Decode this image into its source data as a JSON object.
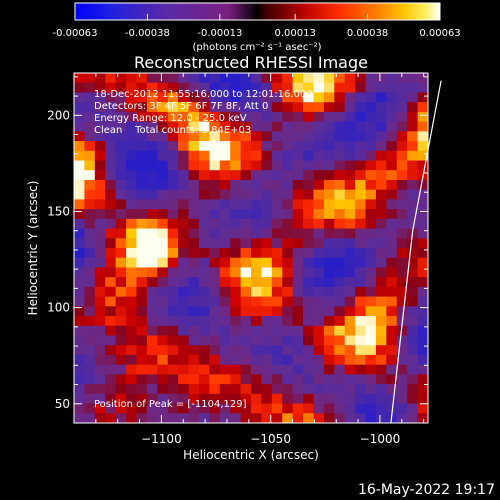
{
  "chart_data": {
    "type": "heatmap",
    "title": "Reconstructed RHESSI Image",
    "xlabel": "Heliocentric X (arcsec)",
    "ylabel": "Heliocentric Y (arcsec)",
    "xlim": [
      -1140,
      -978
    ],
    "ylim": [
      40,
      222
    ],
    "x_ticks": [
      -1100,
      -1050,
      -1000
    ],
    "y_ticks": [
      50,
      100,
      150,
      200
    ],
    "colorbar": {
      "colormap": "red-temperature (blue-purple-red-orange-yellow-white)",
      "min": -0.00063,
      "max": 0.00063,
      "ticks": [
        "-0.00063",
        "-0.00038",
        "-0.00013",
        "0.00013",
        "0.00038",
        "0.00063"
      ],
      "units_label": "(photons cm⁻² s⁻¹ asec⁻²)"
    },
    "info_lines": [
      "18-Dec-2012 11:55:16.000 to 12:01:16.000",
      "Detectors: 3F 4F 5F 6F 7F 8F, Att 0",
      "Energy Range: 12.0 - 25.0 keV",
      "Clean    Total counts: 5.84E+03"
    ],
    "peak_label": "Position of Peak = [-1104,129]",
    "peak_position": [
      -1104,
      129
    ],
    "limb_curve": [
      [
        -972,
        218
      ],
      [
        -985,
        140
      ],
      [
        -995,
        40
      ]
    ],
    "grid_resolution": [
      34,
      36
    ],
    "pattern_seed": 7
  },
  "footer": {
    "date": "16-May-2022 19:17"
  }
}
